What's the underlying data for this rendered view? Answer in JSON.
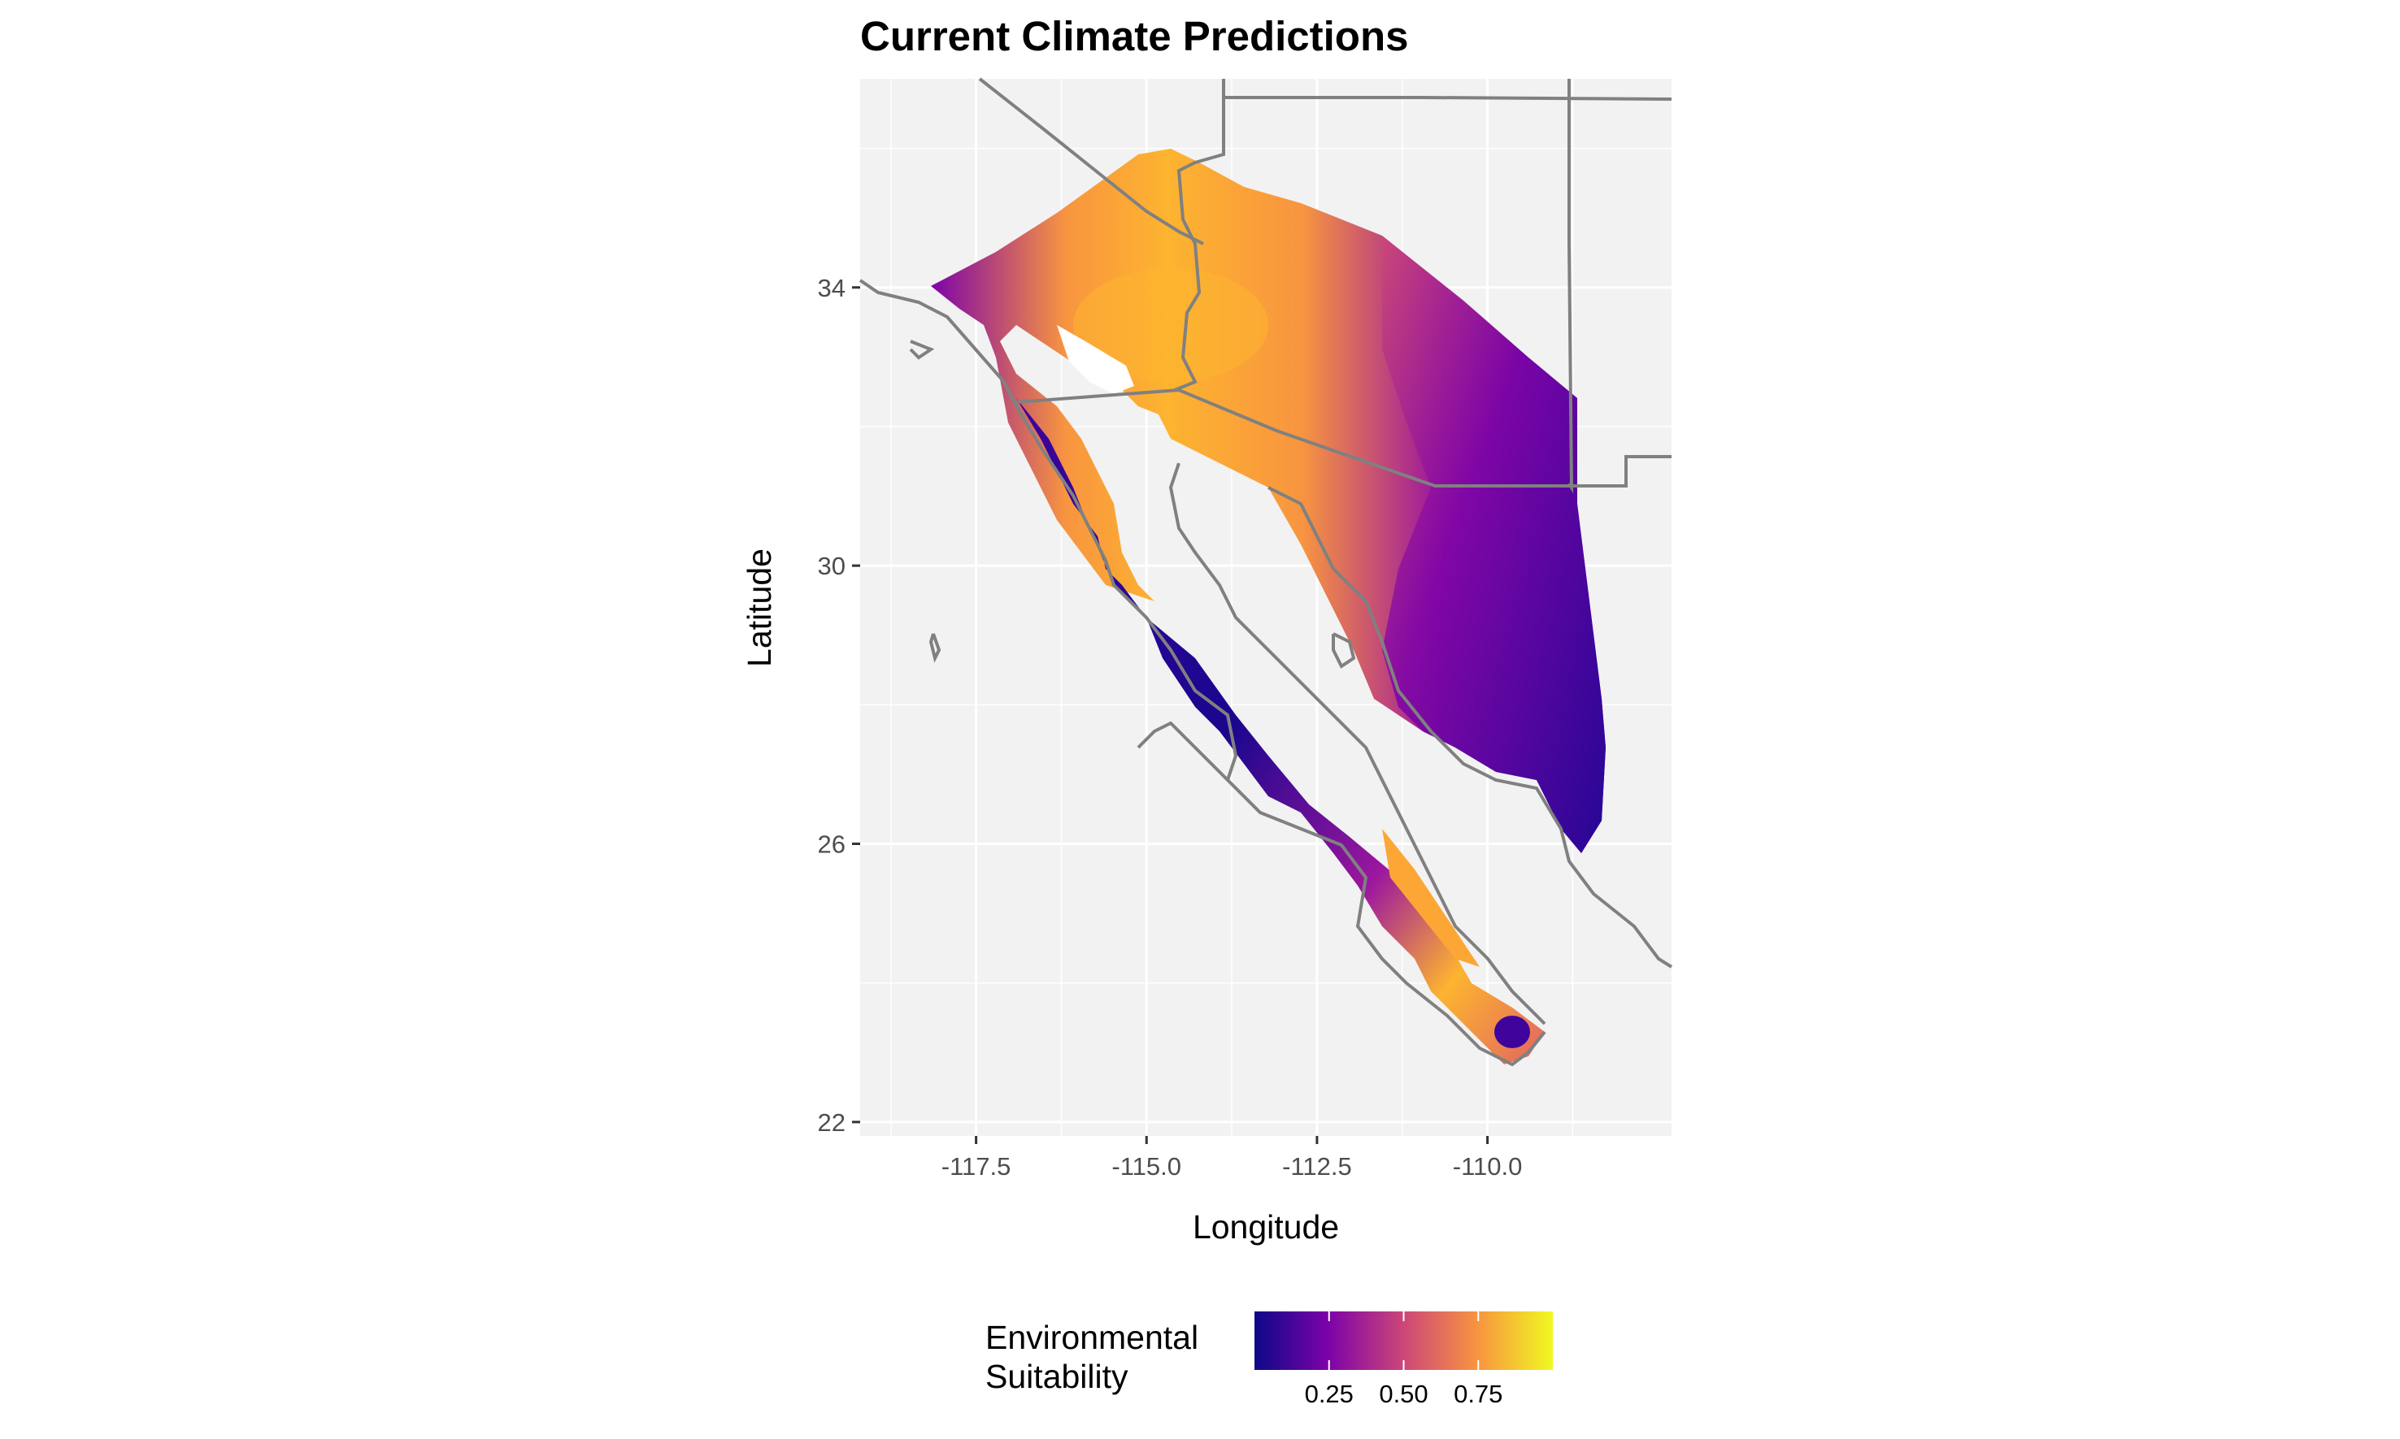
{
  "map": {
    "title": "Current Climate Predictions",
    "xlabel": "Longitude",
    "ylabel": "Latitude",
    "x_ticks": [
      "-117.5",
      "-115.0",
      "-112.5",
      "-110.0"
    ],
    "x_tick_values": [
      -117.5,
      -115.0,
      -112.5,
      -110.0
    ],
    "y_ticks": [
      "22",
      "26",
      "30",
      "34"
    ],
    "y_tick_values": [
      22,
      26,
      30,
      34
    ],
    "xlim": [
      -119.2,
      -107.3
    ],
    "ylim": [
      21.8,
      37.0
    ],
    "panel_background": "#f2f2f2",
    "grid_color": "#ffffff",
    "border_color": "#808080"
  },
  "legend": {
    "title_line1": "Environmental",
    "title_line2": "Suitability",
    "ticks": [
      "0.25",
      "0.50",
      "0.75"
    ],
    "tick_values": [
      0.25,
      0.5,
      0.75
    ],
    "palette": [
      "#0d0887",
      "#7e03a8",
      "#cc4778",
      "#f89540",
      "#f0f921"
    ],
    "range": [
      0.0,
      1.0
    ]
  }
}
